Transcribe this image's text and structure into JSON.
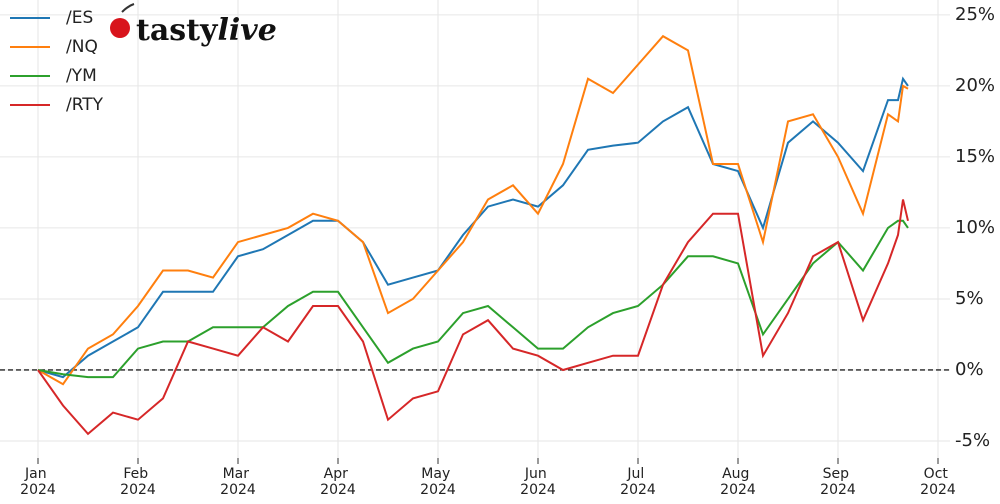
{
  "logo": {
    "part1": "tasty",
    "part2": "live"
  },
  "chart_data": {
    "type": "line",
    "x": [
      0,
      0.25,
      0.5,
      0.75,
      1,
      1.25,
      1.5,
      1.75,
      2,
      2.25,
      2.5,
      2.75,
      3,
      3.25,
      3.5,
      3.75,
      4,
      4.25,
      4.5,
      4.75,
      5,
      5.25,
      5.5,
      5.75,
      6,
      6.25,
      6.5,
      6.75,
      7,
      7.25,
      7.5,
      7.75,
      8,
      8.25,
      8.5,
      8.6,
      8.65,
      8.7
    ],
    "series": [
      {
        "name": "/ES",
        "color": "#1f77b4",
        "values": [
          0,
          -0.5,
          1,
          2,
          3,
          5.5,
          5.5,
          5.5,
          8,
          8.5,
          9.5,
          10.5,
          10.5,
          9,
          6,
          6.5,
          7,
          9.5,
          11.5,
          12,
          11.5,
          13,
          15.5,
          15.8,
          16,
          17.5,
          18.5,
          14.5,
          14,
          10,
          16,
          17.5,
          16,
          14,
          19,
          19,
          20.5,
          20
        ]
      },
      {
        "name": "/NQ",
        "color": "#ff7f0e",
        "values": [
          0,
          -1,
          1.5,
          2.5,
          4.5,
          7,
          7,
          6.5,
          9,
          9.5,
          10,
          11,
          10.5,
          9,
          4,
          5,
          7,
          9,
          12,
          13,
          11,
          14.5,
          20.5,
          19.5,
          21.5,
          23.5,
          22.5,
          14.5,
          14.5,
          9,
          17.5,
          18,
          15,
          11,
          18,
          17.5,
          20,
          19.8
        ]
      },
      {
        "name": "/YM",
        "color": "#2ca02c",
        "values": [
          0,
          -0.3,
          -0.5,
          -0.5,
          1.5,
          2,
          2,
          3,
          3,
          3,
          4.5,
          5.5,
          5.5,
          3,
          0.5,
          1.5,
          2,
          4,
          4.5,
          3,
          1.5,
          1.5,
          3,
          4,
          4.5,
          6,
          8,
          8,
          7.5,
          2.5,
          5,
          7.5,
          9,
          7,
          10,
          10.5,
          10.5,
          10
        ]
      },
      {
        "name": "/RTY",
        "color": "#d62728",
        "values": [
          0,
          -2.5,
          -4.5,
          -3,
          -3.5,
          -2,
          2,
          1.5,
          1,
          3,
          2,
          4.5,
          4.5,
          2,
          -3.5,
          -2,
          -1.5,
          2.5,
          3.5,
          1.5,
          1,
          0,
          0.5,
          1,
          1,
          6,
          9,
          11,
          11,
          1,
          4,
          8,
          9,
          3.5,
          7.5,
          9.5,
          12,
          10.5
        ]
      }
    ],
    "xlim": [
      -0.38,
      9.12
    ],
    "xticks": [
      {
        "value": 0,
        "label": "Jan 2024"
      },
      {
        "value": 1,
        "label": "Feb 2024"
      },
      {
        "value": 2,
        "label": "Mar 2024"
      },
      {
        "value": 3,
        "label": "Apr 2024"
      },
      {
        "value": 4,
        "label": "May 2024"
      },
      {
        "value": 5,
        "label": "Jun 2024"
      },
      {
        "value": 6,
        "label": "Jul 2024"
      },
      {
        "value": 7,
        "label": "Aug 2024"
      },
      {
        "value": 8,
        "label": "Sep 2024"
      },
      {
        "value": 9,
        "label": "Oct 2024"
      }
    ],
    "ylim": [
      -6.2,
      26.05
    ],
    "yticks": [
      {
        "value": -5,
        "label": "-5%"
      },
      {
        "value": 0,
        "label": "0%"
      },
      {
        "value": 5,
        "label": "5%"
      },
      {
        "value": 10,
        "label": "10%"
      },
      {
        "value": 15,
        "label": "15%"
      },
      {
        "value": 20,
        "label": "20%"
      },
      {
        "value": 25,
        "label": "25%"
      }
    ],
    "grid": true,
    "legend": "upper-left"
  }
}
